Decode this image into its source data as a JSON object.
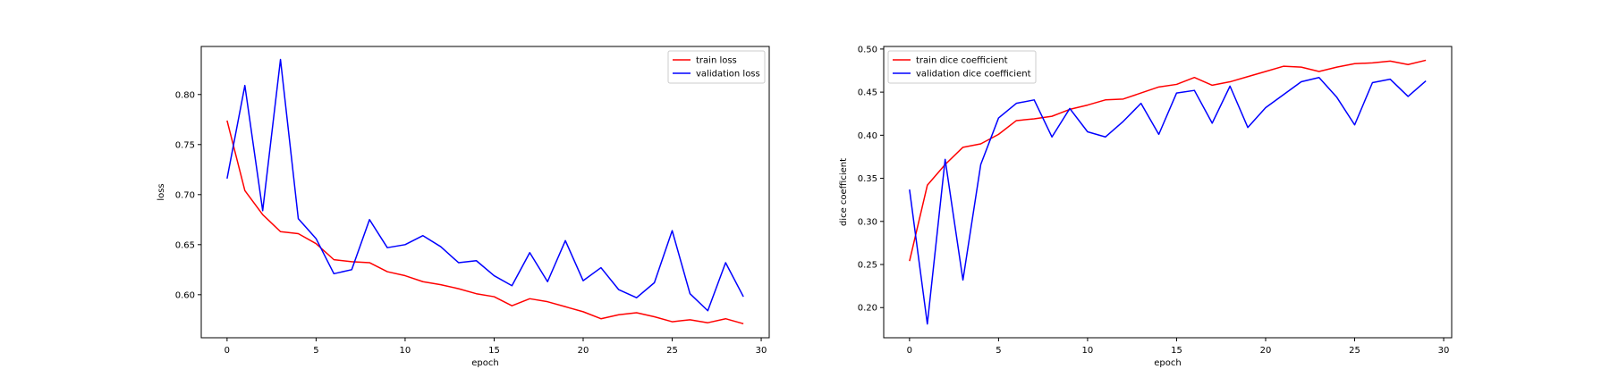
{
  "chart_data": [
    {
      "type": "line",
      "xlabel": "epoch",
      "ylabel": "loss",
      "xlim": [
        -1.45,
        30.45
      ],
      "ylim": [
        0.557,
        0.848
      ],
      "xticks": [
        0,
        5,
        10,
        15,
        20,
        25,
        30
      ],
      "xtick_labels": [
        "0",
        "5",
        "10",
        "15",
        "20",
        "25",
        "30"
      ],
      "yticks": [
        0.6,
        0.65,
        0.7,
        0.75,
        0.8
      ],
      "ytick_labels": [
        "0.60",
        "0.65",
        "0.70",
        "0.75",
        "0.80"
      ],
      "grid": false,
      "legend_position": "upper-right",
      "x": [
        0,
        1,
        2,
        3,
        4,
        5,
        6,
        7,
        8,
        9,
        10,
        11,
        12,
        13,
        14,
        15,
        16,
        17,
        18,
        19,
        20,
        21,
        22,
        23,
        24,
        25,
        26,
        27,
        28,
        29
      ],
      "series": [
        {
          "name": "train loss",
          "color": "#ff0000",
          "values": [
            0.774,
            0.704,
            0.68,
            0.663,
            0.661,
            0.651,
            0.635,
            0.633,
            0.632,
            0.623,
            0.619,
            0.613,
            0.61,
            0.606,
            0.601,
            0.598,
            0.589,
            0.596,
            0.593,
            0.588,
            0.583,
            0.576,
            0.58,
            0.582,
            0.578,
            0.573,
            0.575,
            0.572,
            0.576,
            0.571
          ]
        },
        {
          "name": "validation loss",
          "color": "#0000ff",
          "values": [
            0.716,
            0.809,
            0.684,
            0.835,
            0.676,
            0.656,
            0.621,
            0.625,
            0.675,
            0.647,
            0.65,
            0.659,
            0.648,
            0.632,
            0.634,
            0.619,
            0.609,
            0.642,
            0.613,
            0.654,
            0.614,
            0.627,
            0.605,
            0.597,
            0.612,
            0.664,
            0.601,
            0.584,
            0.632,
            0.598
          ]
        }
      ]
    },
    {
      "type": "line",
      "xlabel": "epoch",
      "ylabel": "dice coefficient",
      "xlim": [
        -1.45,
        30.45
      ],
      "ylim": [
        0.165,
        0.503
      ],
      "xticks": [
        0,
        5,
        10,
        15,
        20,
        25,
        30
      ],
      "xtick_labels": [
        "0",
        "5",
        "10",
        "15",
        "20",
        "25",
        "30"
      ],
      "yticks": [
        0.2,
        0.25,
        0.3,
        0.35,
        0.4,
        0.45,
        0.5
      ],
      "ytick_labels": [
        "0.20",
        "0.25",
        "0.30",
        "0.35",
        "0.40",
        "0.45",
        "0.50"
      ],
      "grid": false,
      "legend_position": "upper-left",
      "x": [
        0,
        1,
        2,
        3,
        4,
        5,
        6,
        7,
        8,
        9,
        10,
        11,
        12,
        13,
        14,
        15,
        16,
        17,
        18,
        19,
        20,
        21,
        22,
        23,
        24,
        25,
        26,
        27,
        28,
        29
      ],
      "series": [
        {
          "name": "train dice coefficient",
          "color": "#ff0000",
          "values": [
            0.254,
            0.342,
            0.366,
            0.386,
            0.39,
            0.401,
            0.417,
            0.419,
            0.422,
            0.43,
            0.435,
            0.441,
            0.442,
            0.449,
            0.456,
            0.459,
            0.467,
            0.458,
            0.462,
            0.468,
            0.474,
            0.48,
            0.479,
            0.474,
            0.479,
            0.483,
            0.484,
            0.486,
            0.482,
            0.487
          ]
        },
        {
          "name": "validation dice coefficient",
          "color": "#0000ff",
          "values": [
            0.337,
            0.181,
            0.372,
            0.232,
            0.366,
            0.42,
            0.437,
            0.441,
            0.398,
            0.431,
            0.404,
            0.398,
            0.416,
            0.437,
            0.401,
            0.449,
            0.452,
            0.414,
            0.457,
            0.409,
            0.432,
            0.447,
            0.462,
            0.467,
            0.444,
            0.412,
            0.461,
            0.465,
            0.445,
            0.463
          ]
        }
      ]
    }
  ]
}
